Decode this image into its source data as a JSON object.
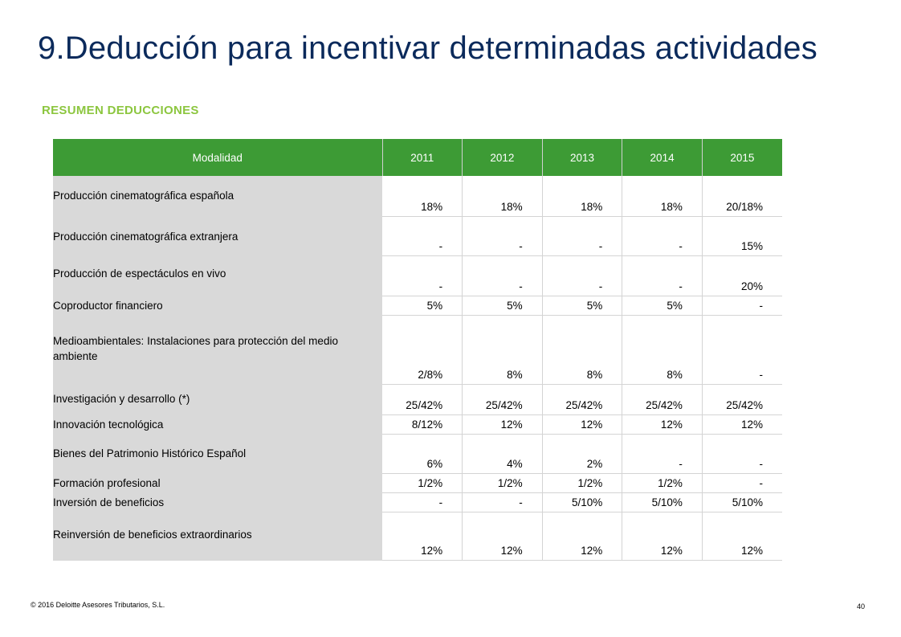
{
  "title": "9.Deducción para incentivar determinadas actividades",
  "subtitle": "RESUMEN DEDUCCIONES",
  "table": {
    "headers": [
      "Modalidad",
      "2011",
      "2012",
      "2013",
      "2014",
      "2015"
    ],
    "rows": [
      {
        "label": "Producción cinematográfica española",
        "values": [
          "18%",
          "18%",
          "18%",
          "18%",
          "20/18%"
        ]
      },
      {
        "label": "Producción cinematográfica extranjera",
        "values": [
          "-",
          "-",
          "-",
          "-",
          "15%"
        ]
      },
      {
        "label": "Producción de espectáculos en vivo",
        "values": [
          "-",
          "-",
          "-",
          "-",
          "20%"
        ]
      },
      {
        "label": "Coproductor financiero",
        "values": [
          "5%",
          "5%",
          "5%",
          "5%",
          "-"
        ]
      },
      {
        "label": "Medioambientales: Instalaciones para protección del medio ambiente",
        "values": [
          "2/8%",
          "8%",
          "8%",
          "8%",
          "-"
        ]
      },
      {
        "label": "Investigación y desarrollo (*)",
        "values": [
          "25/42%",
          "25/42%",
          "25/42%",
          "25/42%",
          "25/42%"
        ]
      },
      {
        "label": "Innovación tecnológica",
        "values": [
          "8/12%",
          "12%",
          "12%",
          "12%",
          "12%"
        ]
      },
      {
        "label": "Bienes del Patrimonio Histórico Español",
        "values": [
          "6%",
          "4%",
          "2%",
          "-",
          "-"
        ]
      },
      {
        "label": "Formación profesional",
        "values": [
          "1/2%",
          "1/2%",
          "1/2%",
          "1/2%",
          "-"
        ]
      },
      {
        "label": "Inversión de beneficios",
        "values": [
          "-",
          "-",
          "5/10%",
          "5/10%",
          "5/10%"
        ]
      },
      {
        "label": "Reinversión de beneficios extraordinarios",
        "values": [
          "12%",
          "12%",
          "12%",
          "12%",
          "12%"
        ]
      }
    ]
  },
  "footer": "© 2016 Deloitte Asesores Tributarios, S.L.",
  "page_number": "40",
  "colors": {
    "title": "#0b2a5b",
    "subtitle": "#8cc63f",
    "header_bg": "#3d9b35",
    "label_bg": "#d9d9d9"
  }
}
